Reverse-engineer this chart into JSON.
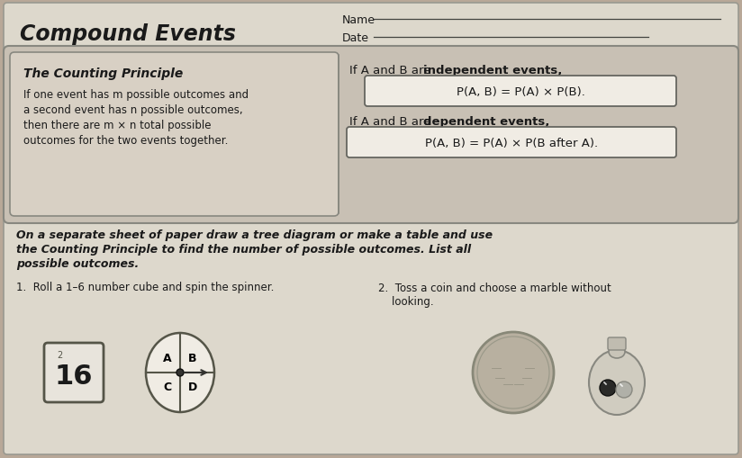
{
  "bg_outer": "#b8a898",
  "bg_page": "#ddd8cc",
  "bg_theory_box": "#c8c0b4",
  "bg_left_box": "#d8d0c4",
  "bg_formula": "#f0ece4",
  "title": "Compound Events",
  "name_label": "Name",
  "date_label": "Date",
  "counting_principle_title": "The Counting Principle",
  "counting_principle_body_line1": "If one event has m possible outcomes and",
  "counting_principle_body_line2": "a second event has n possible outcomes,",
  "counting_principle_body_line3": "then there are m × n total possible",
  "counting_principle_body_line4": "outcomes for the two events together.",
  "independent_header_normal": "If A and B are ",
  "independent_header_bold": "independent events,",
  "independent_formula": "P(A, B) = P(A) × P(B).",
  "dependent_header_normal": "If A and B are ",
  "dependent_header_bold": "dependent events,",
  "dependent_formula": "P(A, B) = P(A) × P(B after A).",
  "instruction_line1": "On a separate sheet of paper draw a tree diagram or make a table and use",
  "instruction_line2": "the Counting Principle to find the number of possible outcomes. List all",
  "instruction_line3": "possible outcomes.",
  "q1_text": "1.  Roll a 1–6 number cube and spin the spinner.",
  "q2_line1": "2.  Toss a coin and choose a marble without",
  "q2_line2": "    looking.",
  "text_color": "#1a1a1a",
  "line_color": "#555550"
}
